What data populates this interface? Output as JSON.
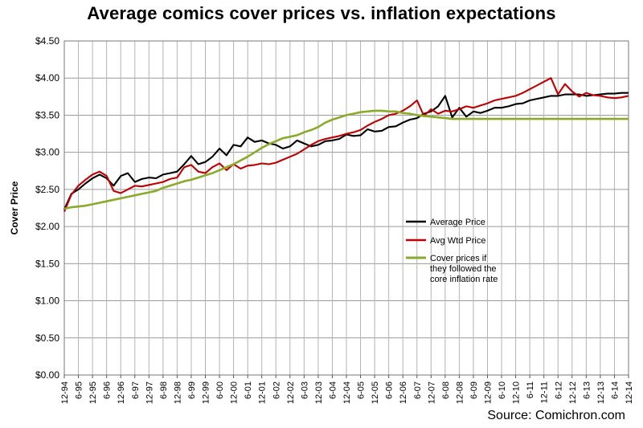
{
  "chart_data": {
    "type": "line",
    "title": "Average comics cover prices vs. inflation expectations",
    "ylabel": "Cover Price",
    "xlabel": "",
    "source": "Source: Comichron.com",
    "ylim": [
      0,
      4.5
    ],
    "y_ticks": [
      "$0.00",
      "$0.50",
      "$1.00",
      "$1.50",
      "$2.00",
      "$2.50",
      "$3.00",
      "$3.50",
      "$4.00",
      "$4.50"
    ],
    "x_ticks": [
      "12-94",
      "6-95",
      "12-95",
      "6-96",
      "12-96",
      "6-97",
      "12-97",
      "6-98",
      "12-98",
      "6-99",
      "12-99",
      "6-00",
      "12-00",
      "6-01",
      "12-01",
      "6-02",
      "12-02",
      "6-03",
      "12-03",
      "6-04",
      "12-04",
      "6-05",
      "12-05",
      "6-06",
      "12-06",
      "6-07",
      "12-07",
      "6-08",
      "12-08",
      "6-09",
      "12-09",
      "6-10",
      "12-10",
      "6-11",
      "12-11",
      "6-12",
      "12-12",
      "6-13",
      "12-13",
      "6-14",
      "12-14"
    ],
    "x_period_months": 6,
    "grid": true,
    "legend_position": "center-right",
    "series": [
      {
        "name": "Average Price",
        "color": "#000000",
        "values": [
          2.23,
          2.44,
          2.5,
          2.58,
          2.65,
          2.7,
          2.65,
          2.55,
          2.68,
          2.72,
          2.6,
          2.64,
          2.66,
          2.65,
          2.7,
          2.72,
          2.74,
          2.84,
          2.95,
          2.84,
          2.87,
          2.94,
          3.05,
          2.96,
          3.1,
          3.08,
          3.2,
          3.14,
          3.16,
          3.12,
          3.1,
          3.05,
          3.08,
          3.16,
          3.12,
          3.08,
          3.1,
          3.15,
          3.16,
          3.18,
          3.24,
          3.22,
          3.23,
          3.31,
          3.28,
          3.29,
          3.34,
          3.35,
          3.4,
          3.44,
          3.46,
          3.52,
          3.55,
          3.62,
          3.76,
          3.47,
          3.6,
          3.48,
          3.55,
          3.53,
          3.56,
          3.6,
          3.6,
          3.62,
          3.65,
          3.66,
          3.7,
          3.72,
          3.74,
          3.76,
          3.76,
          3.78,
          3.78,
          3.78,
          3.76,
          3.77,
          3.78,
          3.79,
          3.79,
          3.8,
          3.8
        ]
      },
      {
        "name": "Avg Wtd Price",
        "color": "#c00000",
        "values": [
          2.2,
          2.43,
          2.55,
          2.63,
          2.7,
          2.74,
          2.68,
          2.48,
          2.45,
          2.5,
          2.55,
          2.54,
          2.56,
          2.58,
          2.6,
          2.64,
          2.66,
          2.8,
          2.83,
          2.74,
          2.72,
          2.8,
          2.85,
          2.76,
          2.84,
          2.78,
          2.82,
          2.83,
          2.85,
          2.84,
          2.86,
          2.9,
          2.94,
          2.98,
          3.04,
          3.1,
          3.15,
          3.18,
          3.2,
          3.22,
          3.25,
          3.27,
          3.3,
          3.36,
          3.41,
          3.45,
          3.5,
          3.52,
          3.56,
          3.62,
          3.7,
          3.49,
          3.58,
          3.52,
          3.56,
          3.55,
          3.58,
          3.62,
          3.6,
          3.63,
          3.66,
          3.7,
          3.72,
          3.74,
          3.76,
          3.8,
          3.85,
          3.9,
          3.95,
          4.0,
          3.78,
          3.92,
          3.82,
          3.75,
          3.8,
          3.77,
          3.76,
          3.74,
          3.73,
          3.74,
          3.76
        ]
      },
      {
        "name": "Cover prices if they followed the core inflation rate",
        "color": "#8aaa2a",
        "values": [
          2.24,
          2.26,
          2.27,
          2.28,
          2.3,
          2.32,
          2.34,
          2.36,
          2.38,
          2.4,
          2.42,
          2.44,
          2.46,
          2.48,
          2.52,
          2.55,
          2.58,
          2.61,
          2.63,
          2.66,
          2.69,
          2.72,
          2.76,
          2.8,
          2.84,
          2.89,
          2.94,
          3.0,
          3.06,
          3.11,
          3.15,
          3.19,
          3.21,
          3.23,
          3.27,
          3.3,
          3.34,
          3.4,
          3.44,
          3.47,
          3.5,
          3.52,
          3.54,
          3.55,
          3.56,
          3.56,
          3.55,
          3.55,
          3.53,
          3.52,
          3.5,
          3.49,
          3.48,
          3.47,
          3.46,
          3.45,
          3.45,
          3.45,
          3.45,
          3.45,
          3.45,
          3.45,
          3.45,
          3.45,
          3.45,
          3.45,
          3.45,
          3.45,
          3.45,
          3.45,
          3.45,
          3.45,
          3.45,
          3.45,
          3.45,
          3.45,
          3.45,
          3.45,
          3.45,
          3.45,
          3.45
        ]
      }
    ]
  }
}
